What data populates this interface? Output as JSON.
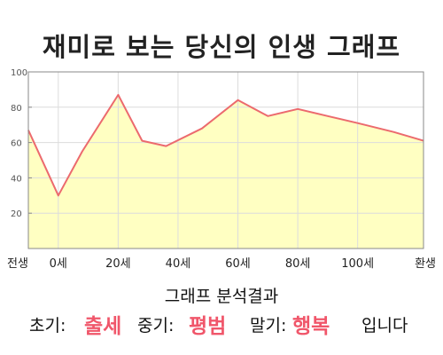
{
  "title": "재미로 보는 당신의 인생 그래프",
  "summary": {
    "heading": "그래프 분석결과",
    "early_label": "초기:",
    "early_value": "출세",
    "mid_label": "중기:",
    "mid_value": "평범",
    "late_label": "말기:",
    "late_value": "행복",
    "suffix": "입니다"
  },
  "colors": {
    "line": "#ec6a6e",
    "fill": "#ffffc2",
    "highlight": "#f0566a"
  },
  "chart_data": {
    "type": "area",
    "x": [
      -10,
      0,
      8,
      20,
      28,
      36,
      48,
      60,
      70,
      80,
      90,
      100,
      112,
      122
    ],
    "y": [
      67,
      30,
      55,
      87,
      61,
      58,
      68,
      84,
      75,
      79,
      75,
      71,
      66,
      61
    ],
    "xticks": [
      -10,
      0,
      20,
      40,
      60,
      80,
      100,
      122
    ],
    "xtick_labels": [
      "전생",
      "0세",
      "20세",
      "40세",
      "60세",
      "80세",
      "100세",
      "환생"
    ],
    "yticks": [
      20,
      40,
      60,
      80,
      100
    ],
    "xlim": [
      -10,
      122
    ],
    "ylim": [
      0,
      100
    ],
    "grid": true,
    "xlabel": "",
    "ylabel": ""
  }
}
